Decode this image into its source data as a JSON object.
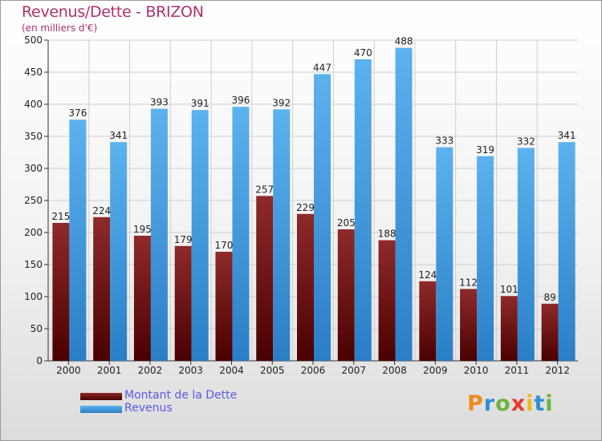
{
  "chart_data": {
    "type": "bar",
    "title": "Revenus/Dette - BRIZON",
    "subtitle": "(en milliers d'€)",
    "xlabel": "",
    "ylabel": "",
    "ylim": [
      0,
      500
    ],
    "yticks": [
      0,
      50,
      100,
      150,
      200,
      250,
      300,
      350,
      400,
      450,
      500
    ],
    "grid": true,
    "categories": [
      "2000",
      "2001",
      "2002",
      "2003",
      "2004",
      "2005",
      "2006",
      "2007",
      "2008",
      "2009",
      "2010",
      "2011",
      "2012"
    ],
    "series": [
      {
        "name": "Montant de la Dette",
        "color": "#7a1a1a",
        "values": [
          215,
          224,
          195,
          179,
          170,
          257,
          229,
          205,
          188,
          124,
          112,
          101,
          89
        ]
      },
      {
        "name": "Revenus",
        "color": "#4aa3e0",
        "values": [
          376,
          341,
          393,
          391,
          396,
          392,
          447,
          470,
          488,
          333,
          319,
          332,
          341
        ]
      }
    ],
    "legend_position": "bottom-left"
  },
  "logo": {
    "letters": [
      "P",
      "r",
      "o",
      "x",
      "i",
      "t",
      "i"
    ],
    "colors": [
      "#f08a1e",
      "#2f8fd6",
      "#6cb43f",
      "#e23b2f",
      "#f0b81e",
      "#2f8fd6",
      "#6cb43f"
    ]
  }
}
